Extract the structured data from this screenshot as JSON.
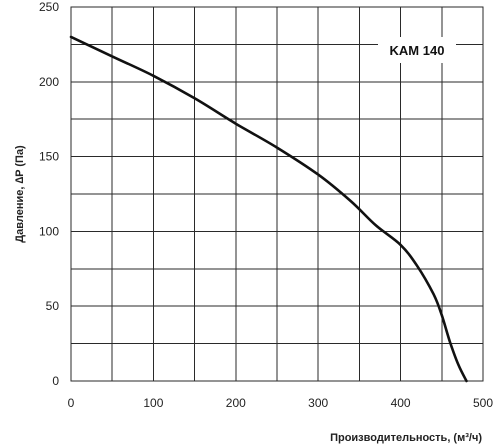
{
  "chart_data": {
    "type": "line",
    "title": "",
    "xlabel": "Производительность, (м³/ч)",
    "ylabel": "Давление, ∆P (Па)",
    "xlim": [
      0,
      500
    ],
    "ylim": [
      0,
      250
    ],
    "x_ticks": [
      0,
      50,
      100,
      150,
      200,
      250,
      300,
      350,
      400,
      450,
      500
    ],
    "y_ticks": [
      0,
      25,
      50,
      75,
      100,
      125,
      150,
      175,
      200,
      225,
      250
    ],
    "x_tick_labels": [
      "0",
      "100",
      "200",
      "300",
      "400",
      "500"
    ],
    "y_tick_labels": [
      "0",
      "50",
      "100",
      "150",
      "200",
      "250"
    ],
    "grid": true,
    "legend_position": "top-right",
    "series": [
      {
        "name": "KAM 140",
        "color": "#111111",
        "x": [
          0,
          50,
          100,
          150,
          200,
          250,
          300,
          340,
          370,
          400,
          420,
          440,
          450,
          460,
          470,
          480
        ],
        "y": [
          230,
          217,
          204,
          189,
          172,
          156,
          138,
          120,
          104,
          91,
          77,
          58,
          44,
          26,
          11,
          0
        ]
      }
    ]
  }
}
